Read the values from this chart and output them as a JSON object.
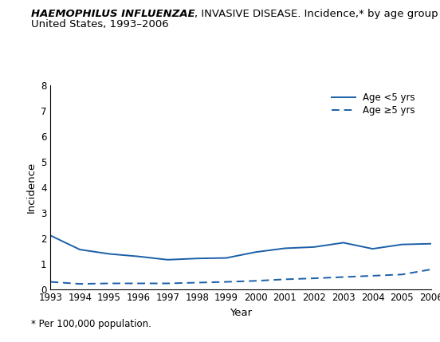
{
  "title_italic": "HAEMOPHILUS INFLUENZAE",
  "title_regular": ", INVASIVE DISEASE. Incidence,* by age group —",
  "title_line2": "United States, 1993–2006",
  "xlabel": "Year",
  "ylabel": "Incidence",
  "footnote": "* Per 100,000 population.",
  "years": [
    1993,
    1994,
    1995,
    1996,
    1997,
    1998,
    1999,
    2000,
    2001,
    2002,
    2003,
    2004,
    2005,
    2006
  ],
  "age_lt5": [
    2.1,
    1.55,
    1.38,
    1.28,
    1.15,
    1.2,
    1.22,
    1.45,
    1.6,
    1.65,
    1.82,
    1.58,
    1.75,
    1.78
  ],
  "age_ge5": [
    0.28,
    0.2,
    0.22,
    0.22,
    0.22,
    0.25,
    0.28,
    0.32,
    0.38,
    0.42,
    0.47,
    0.52,
    0.57,
    0.77
  ],
  "line_color": "#1a5fa8",
  "ylim": [
    0,
    8
  ],
  "yticks": [
    0,
    1,
    2,
    3,
    4,
    5,
    6,
    7,
    8
  ],
  "legend_label_lt5": "Age <5 yrs",
  "legend_label_ge5": "Age ≥5 yrs",
  "title_fontsize": 9.5,
  "tick_fontsize": 8.5,
  "legend_fontsize": 8.5,
  "footnote_fontsize": 8.5,
  "ylabel_fontsize": 9.5,
  "xlabel_fontsize": 9.5
}
